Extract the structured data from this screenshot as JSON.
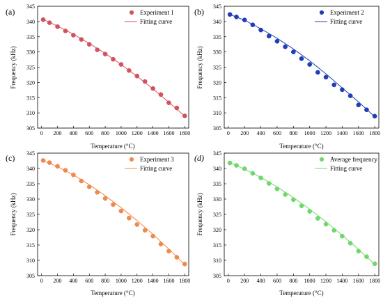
{
  "chart_data": [
    {
      "type": "scatter",
      "panel_label": "(a)",
      "xlabel": "Temperature (°C)",
      "ylabel": "Frequency (kHz)",
      "xlim": [
        -50,
        1850
      ],
      "ylim": [
        305,
        345
      ],
      "x_ticks": [
        "0",
        "200",
        "400",
        "600",
        "800",
        "1000",
        "1200",
        "1400",
        "1600",
        "1800"
      ],
      "y_ticks": [
        "305",
        "310",
        "315",
        "320",
        "325",
        "330",
        "335",
        "340",
        "345"
      ],
      "color": "#d2535f",
      "legend_position": "top-right",
      "series": [
        {
          "name": "Experiment 1",
          "x": [
            20,
            100,
            200,
            300,
            400,
            500,
            600,
            700,
            800,
            900,
            1000,
            1100,
            1200,
            1300,
            1400,
            1500,
            1600,
            1700,
            1800
          ],
          "y": [
            340.6,
            339.6,
            338.3,
            336.9,
            335.5,
            334.1,
            332.5,
            330.7,
            329.3,
            327.6,
            325.9,
            323.9,
            322.1,
            320.3,
            318.0,
            316.0,
            313.3,
            311.6,
            309.0
          ]
        },
        {
          "name": "Fitting curve",
          "x": [
            0,
            200,
            400,
            600,
            800,
            1000,
            1200,
            1400,
            1600,
            1800
          ],
          "y": [
            340.9,
            338.5,
            335.8,
            332.8,
            329.5,
            325.9,
            322.0,
            317.9,
            313.5,
            308.9
          ]
        }
      ]
    },
    {
      "type": "scatter",
      "panel_label": "(b)",
      "xlabel": "Temperature (°C)",
      "ylabel": "Frequency (kHz)",
      "xlim": [
        -50,
        1850
      ],
      "ylim": [
        305,
        345
      ],
      "x_ticks": [
        "0",
        "200",
        "400",
        "600",
        "800",
        "1000",
        "1200",
        "1400",
        "1600",
        "1800"
      ],
      "y_ticks": [
        "305",
        "310",
        "315",
        "320",
        "325",
        "330",
        "335",
        "340",
        "345"
      ],
      "color": "#1f3fb5",
      "legend_position": "top-right",
      "series": [
        {
          "name": "Experiment 2",
          "x": [
            20,
            100,
            200,
            300,
            400,
            500,
            600,
            700,
            800,
            900,
            1000,
            1100,
            1200,
            1300,
            1400,
            1500,
            1600,
            1700,
            1800
          ],
          "y": [
            342.3,
            341.5,
            340.5,
            338.9,
            337.2,
            335.2,
            333.5,
            331.7,
            330.0,
            327.8,
            325.9,
            323.3,
            321.7,
            319.2,
            317.6,
            315.6,
            312.6,
            311.0,
            308.9
          ]
        },
        {
          "name": "Fitting curve",
          "x": [
            0,
            200,
            400,
            600,
            800,
            1000,
            1200,
            1400,
            1600,
            1800
          ],
          "y": [
            342.5,
            340.4,
            337.6,
            334.5,
            331.0,
            327.1,
            322.8,
            318.2,
            313.6,
            308.7
          ]
        }
      ]
    },
    {
      "type": "scatter",
      "panel_label": "(c)",
      "xlabel": "Temperature (°C)",
      "ylabel": "Frequency (kHz)",
      "xlim": [
        -50,
        1850
      ],
      "ylim": [
        305,
        345
      ],
      "x_ticks": [
        "0",
        "200",
        "400",
        "600",
        "800",
        "1000",
        "1200",
        "1400",
        "1600",
        "1800"
      ],
      "y_ticks": [
        "305",
        "310",
        "315",
        "320",
        "325",
        "330",
        "335",
        "340",
        "345"
      ],
      "color": "#ef8a4d",
      "legend_position": "top-right",
      "series": [
        {
          "name": "Experiment 3",
          "x": [
            20,
            100,
            200,
            300,
            400,
            500,
            600,
            700,
            800,
            900,
            1000,
            1100,
            1200,
            1300,
            1400,
            1500,
            1600,
            1700,
            1800
          ],
          "y": [
            342.6,
            341.9,
            340.7,
            339.4,
            337.9,
            335.9,
            334.0,
            332.2,
            330.2,
            328.2,
            326.1,
            323.8,
            321.7,
            319.8,
            317.9,
            315.3,
            313.0,
            311.0,
            308.8
          ]
        },
        {
          "name": "Fitting curve",
          "x": [
            0,
            200,
            400,
            600,
            800,
            1000,
            1200,
            1400,
            1600,
            1800
          ],
          "y": [
            342.8,
            340.6,
            337.9,
            334.7,
            331.1,
            327.2,
            323.0,
            318.5,
            313.7,
            308.6
          ]
        }
      ]
    },
    {
      "type": "scatter",
      "panel_label": "(d)",
      "xlabel": "Temperature (°C)",
      "ylabel": "Frequency (kHz)",
      "xlim": [
        -50,
        1850
      ],
      "ylim": [
        305,
        345
      ],
      "x_ticks": [
        "0",
        "200",
        "400",
        "600",
        "800",
        "1000",
        "1200",
        "1400",
        "1600",
        "1800"
      ],
      "y_ticks": [
        "305",
        "310",
        "315",
        "320",
        "325",
        "330",
        "335",
        "340",
        "345"
      ],
      "color": "#6fd86a",
      "legend_position": "top-right",
      "series": [
        {
          "name": "Average frequency",
          "x": [
            20,
            100,
            200,
            300,
            400,
            500,
            600,
            700,
            800,
            900,
            1000,
            1100,
            1200,
            1300,
            1400,
            1500,
            1600,
            1700,
            1800
          ],
          "y": [
            341.8,
            341.0,
            339.9,
            338.4,
            336.9,
            335.1,
            333.3,
            331.5,
            329.8,
            327.8,
            326.0,
            323.7,
            321.8,
            319.8,
            317.9,
            315.6,
            313.0,
            311.2,
            308.9
          ]
        },
        {
          "name": "Fitting curve",
          "x": [
            0,
            200,
            400,
            600,
            800,
            1000,
            1200,
            1400,
            1600,
            1800
          ],
          "y": [
            342.1,
            339.8,
            337.1,
            334.0,
            330.5,
            326.7,
            322.6,
            318.2,
            313.6,
            308.7
          ]
        }
      ]
    }
  ]
}
